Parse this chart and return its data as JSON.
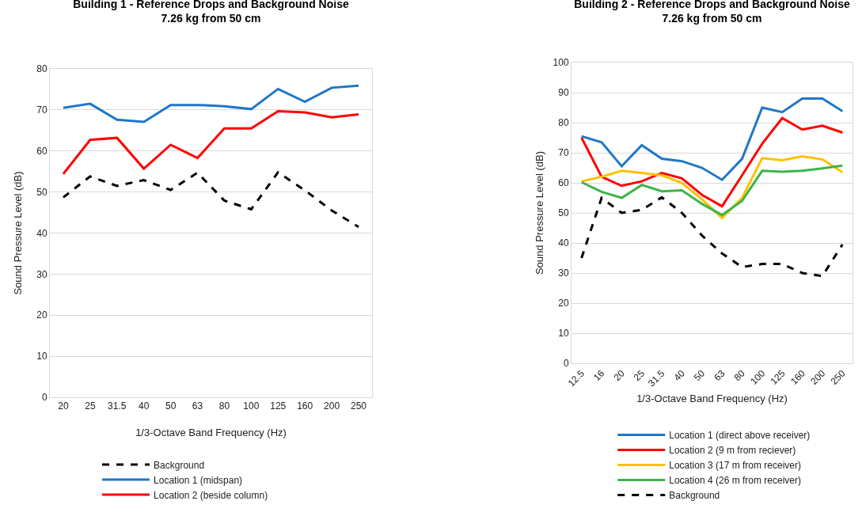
{
  "chart_data": [
    {
      "type": "line",
      "title": "Building 1 - Reference Drops and Background Noise\n7.26 kg from 50 cm",
      "xlabel": "1/3-Octave Band Frequency (Hz)",
      "ylabel": "Sound Pressure Level (dB)",
      "categories": [
        "20",
        "25",
        "31.5",
        "40",
        "50",
        "63",
        "80",
        "100",
        "125",
        "160",
        "200",
        "250"
      ],
      "series": [
        {
          "name": "Background",
          "color": "#000000",
          "line_style": "dashed",
          "values": [
            48.7,
            53.8,
            51.5,
            52.9,
            50.5,
            54.7,
            47.9,
            45.8,
            54.8,
            50.4,
            45.5,
            41.5
          ]
        },
        {
          "name": "Location 1 (midspan)",
          "color": "#1f77c8",
          "line_style": "solid",
          "values": [
            70.5,
            71.5,
            67.6,
            67.1,
            71.2,
            71.2,
            70.9,
            70.2,
            75.1,
            72.0,
            75.4,
            75.9
          ]
        },
        {
          "name": "Location 2 (beside column)",
          "color": "#ff0000",
          "line_style": "solid",
          "values": [
            54.4,
            62.7,
            63.2,
            55.7,
            61.5,
            58.3,
            65.5,
            65.5,
            69.7,
            69.4,
            68.2,
            68.9
          ]
        }
      ],
      "ylim": [
        0,
        80
      ],
      "yticks": [
        0,
        10,
        20,
        30,
        40,
        50,
        60,
        70,
        80
      ],
      "grid": "y",
      "legend": "bottom",
      "marker": "none"
    },
    {
      "type": "line",
      "title": "Building 2 - Reference Drops and Background Noise\n7.26 kg from 50 cm",
      "xlabel": "1/3-Octave Band Frequency (Hz)",
      "ylabel": "Sound Pressure Level (dB)",
      "categories": [
        "12.5",
        "16",
        "20",
        "25",
        "31.5",
        "40",
        "50",
        "63",
        "80",
        "100",
        "125",
        "160",
        "200",
        "250"
      ],
      "series": [
        {
          "name": "Location 1 (direct above receiver)",
          "color": "#1f77c8",
          "line_style": "solid",
          "values": [
            75.5,
            73.5,
            65.5,
            72.5,
            68,
            67.2,
            65,
            61,
            68,
            85,
            83.5,
            88,
            88,
            83.8
          ]
        },
        {
          "name": "Location 2 (9 m from reciever)",
          "color": "#ff0000",
          "line_style": "solid",
          "values": [
            75,
            62,
            59,
            60.5,
            63.3,
            61.5,
            56,
            52.2,
            62.5,
            73,
            81.5,
            77.7,
            79,
            76.7
          ]
        },
        {
          "name": "Location 3 (17 m from receiver)",
          "color": "#ffc000",
          "line_style": "solid",
          "values": [
            60.5,
            62,
            64,
            63.3,
            62.5,
            60,
            54.5,
            48.3,
            55,
            68.2,
            67.5,
            68.8,
            67.8,
            63.5
          ]
        },
        {
          "name": "Location 4 (26 m from receiver)",
          "color": "#3cb44b",
          "line_style": "solid",
          "values": [
            60.2,
            57,
            55,
            59.3,
            57.2,
            57.5,
            53,
            49.3,
            54,
            64,
            63.7,
            64,
            64.8,
            65.7
          ]
        },
        {
          "name": "Background",
          "color": "#000000",
          "line_style": "dashed",
          "values": [
            35,
            55,
            50,
            51,
            55.2,
            50,
            42.5,
            36.5,
            32,
            33,
            33,
            30,
            29,
            39.5
          ]
        }
      ],
      "ylim": [
        0,
        100
      ],
      "yticks": [
        0,
        10,
        20,
        30,
        40,
        50,
        60,
        70,
        80,
        90,
        100
      ],
      "grid": "y",
      "legend": "bottom",
      "marker": "none"
    }
  ]
}
